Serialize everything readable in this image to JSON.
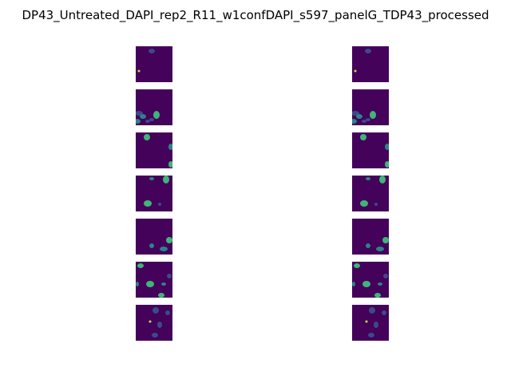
{
  "figure": {
    "title": "DP43_Untreated_DAPI_rep2_R11_w1confDAPI_s597_panelG_TDP43_processed"
  },
  "colors": {
    "background_tile": "#44025a",
    "cell_dim": "#3b4f8a",
    "cell_mid": "#2a8a8c",
    "cell_bright": "#3fbf7a",
    "spot_bright": "#c7e84a"
  },
  "panels": {
    "columns": [
      "left",
      "right"
    ],
    "rows": 7
  }
}
